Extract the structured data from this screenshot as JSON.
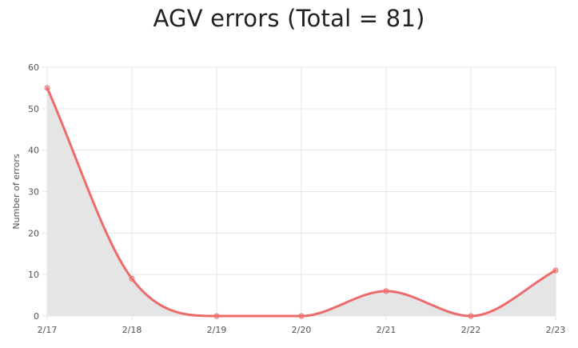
{
  "chart_data": {
    "type": "area",
    "title": "AGV errors (Total = 81)",
    "xlabel": "",
    "ylabel": "Number of errors",
    "categories": [
      "2/17",
      "2/18",
      "2/19",
      "2/20",
      "2/21",
      "2/22",
      "2/23"
    ],
    "series": [
      {
        "values": [
          55,
          9,
          0,
          0,
          6,
          0,
          11
        ]
      }
    ],
    "ylim": [
      0,
      60
    ],
    "yticks": [
      0,
      10,
      20,
      30,
      40,
      50,
      60
    ],
    "grid": true,
    "legend": "none",
    "line_color": "#ee6b6b",
    "fill_color": "#e5e5e5",
    "grid_color": "#e6e6e6"
  }
}
